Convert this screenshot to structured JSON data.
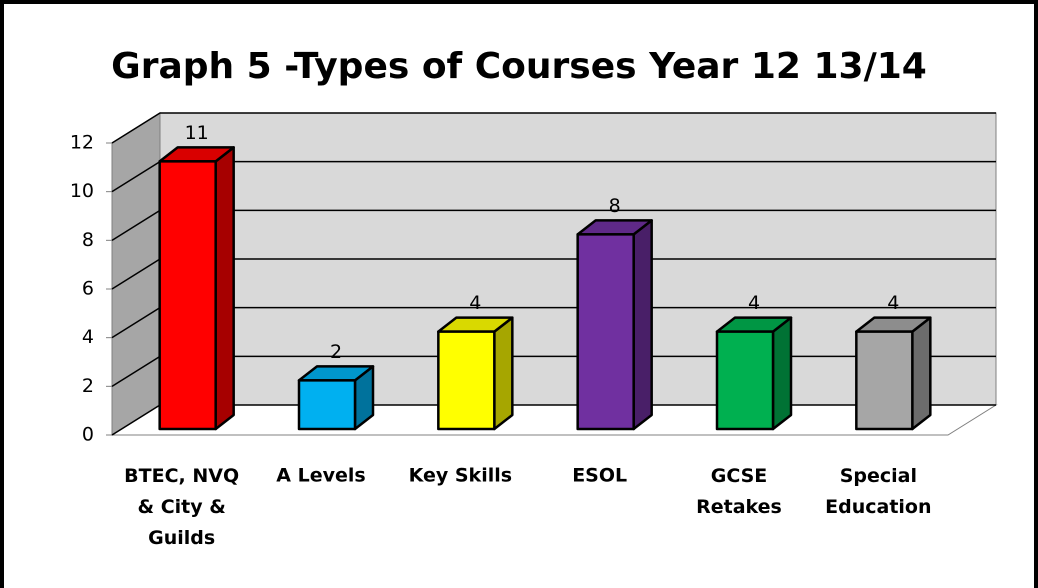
{
  "chart_data": {
    "type": "bar3d",
    "title": "Graph 5 -Types of Courses Year 12 13/14",
    "categories": [
      "BTEC, NVQ\n& City &\nGuilds",
      "A Levels",
      "Key Skills",
      "ESOL",
      "GCSE\nRetakes",
      "Special\nEducation"
    ],
    "values": [
      11,
      2,
      4,
      8,
      4,
      4
    ],
    "colors": [
      "#ff0000",
      "#00b0f0",
      "#ffff00",
      "#7030a0",
      "#00b050",
      "#a6a6a6"
    ],
    "ylim": [
      0,
      12
    ],
    "yticks": [
      0,
      2,
      4,
      6,
      8,
      10,
      12
    ],
    "grid": true
  }
}
